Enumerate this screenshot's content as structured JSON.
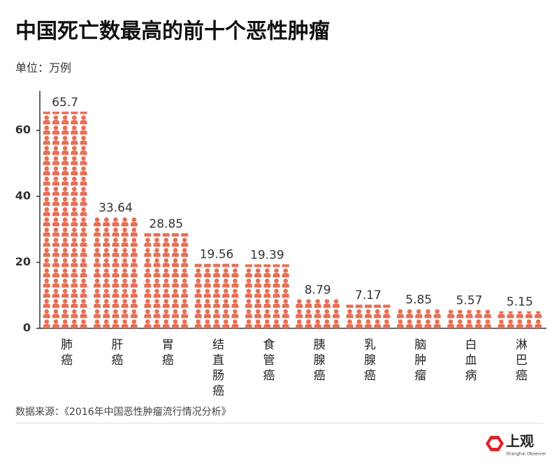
{
  "chart_data": {
    "type": "bar",
    "title": "中国死亡数最高的前十个恶性肿瘤",
    "subtitle": "单位：万例",
    "categories": [
      "肺癌",
      "肝癌",
      "胃癌",
      "结直肠癌",
      "食管癌",
      "胰腺癌",
      "乳腺癌",
      "脑肿瘤",
      "白血病",
      "淋巴癌"
    ],
    "values": [
      65.7,
      33.64,
      28.85,
      19.56,
      19.39,
      8.79,
      7.17,
      5.85,
      5.57,
      5.15
    ],
    "color": "#e66f55",
    "ylim": [
      0,
      72
    ],
    "yticks": [
      0,
      20,
      40,
      60
    ],
    "source": "数据来源：《2016年中国恶性肿瘤流行情况分析》",
    "logo": {
      "text": "上观",
      "subtitle": "Shanghai Observer"
    }
  }
}
